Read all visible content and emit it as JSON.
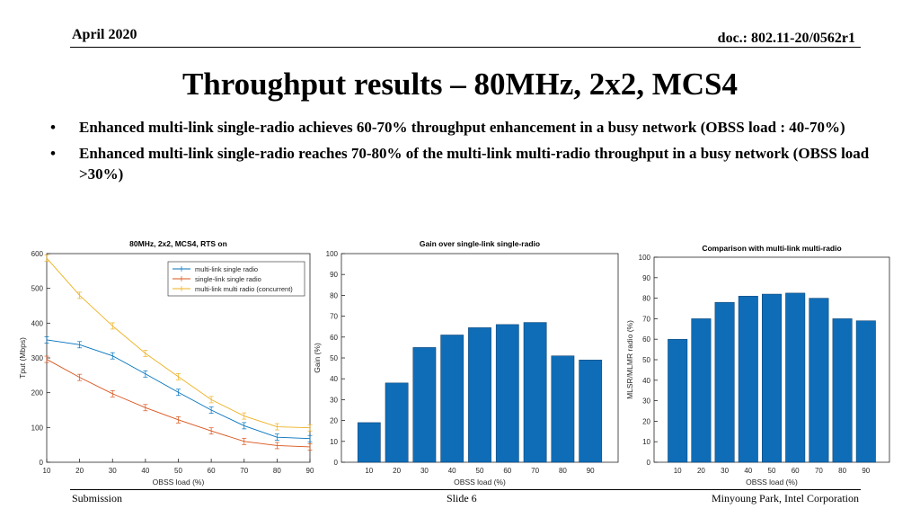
{
  "header": {
    "date": "April 2020",
    "doc": "doc.: 802.11-20/0562r1"
  },
  "title": "Throughput results – 80MHz, 2x2, MCS4",
  "bullets": [
    "Enhanced multi-link single-radio achieves 60-70% throughput enhancement in a busy network (OBSS load : 40-70%)",
    "Enhanced multi-link single-radio reaches 70-80% of the multi-link multi-radio throughput in a busy network (OBSS load >30%)"
  ],
  "footer": {
    "left": "Submission",
    "center": "Slide 6",
    "right": "Minyoung Park, Intel Corporation"
  },
  "colors": {
    "blue_line": "#0072BD",
    "orange_line": "#D95319",
    "yellow_line": "#EDB120",
    "bar": "#0F6DB8"
  },
  "chart_data": [
    {
      "type": "line",
      "title": "80MHz, 2x2, MCS4, RTS on",
      "xlabel": "OBSS load (%)",
      "ylabel": "Tput (Mbps)",
      "xlim": [
        10,
        90
      ],
      "ylim": [
        0,
        600
      ],
      "xticks": [
        10,
        20,
        30,
        40,
        50,
        60,
        70,
        80,
        90
      ],
      "yticks": [
        0,
        100,
        200,
        300,
        400,
        500,
        600
      ],
      "legend_position": "top-right",
      "grid": false,
      "x": [
        10,
        20,
        30,
        40,
        50,
        60,
        70,
        80,
        90
      ],
      "series": [
        {
          "name": "multi-link single radio",
          "color": "#0072BD",
          "values": [
            352,
            338,
            306,
            254,
            201,
            150,
            105,
            72,
            68
          ]
        },
        {
          "name": "single-link single radio",
          "color": "#D95319",
          "values": [
            296,
            244,
            197,
            157,
            122,
            90,
            60,
            48,
            44
          ]
        },
        {
          "name": "multi-link multi radio (concurrent)",
          "color": "#EDB120",
          "values": [
            587,
            480,
            392,
            313,
            246,
            180,
            133,
            102,
            99
          ]
        }
      ]
    },
    {
      "type": "bar",
      "title": "Gain over single-link single-radio",
      "xlabel": "OBSS load (%)",
      "ylabel": "Gain (%)",
      "ylim": [
        0,
        100
      ],
      "yticks": [
        0,
        10,
        20,
        30,
        40,
        50,
        60,
        70,
        80,
        90,
        100
      ],
      "grid": false,
      "categories": [
        "10",
        "20",
        "30",
        "40",
        "50",
        "60",
        "70",
        "80",
        "90"
      ],
      "values": [
        19,
        38,
        55,
        61,
        64.5,
        66,
        67,
        51,
        49
      ]
    },
    {
      "type": "bar",
      "title": "Comparison with multi-link multi-radio",
      "xlabel": "OBSS load (%)",
      "ylabel": "MLSR/MLMR radio (%)",
      "ylim": [
        0,
        100
      ],
      "yticks": [
        0,
        10,
        20,
        30,
        40,
        50,
        60,
        70,
        80,
        90,
        100
      ],
      "grid": false,
      "categories": [
        "10",
        "20",
        "30",
        "40",
        "50",
        "60",
        "70",
        "80",
        "90"
      ],
      "values": [
        60,
        70,
        78,
        81,
        82,
        82.5,
        80,
        70,
        69
      ]
    }
  ]
}
